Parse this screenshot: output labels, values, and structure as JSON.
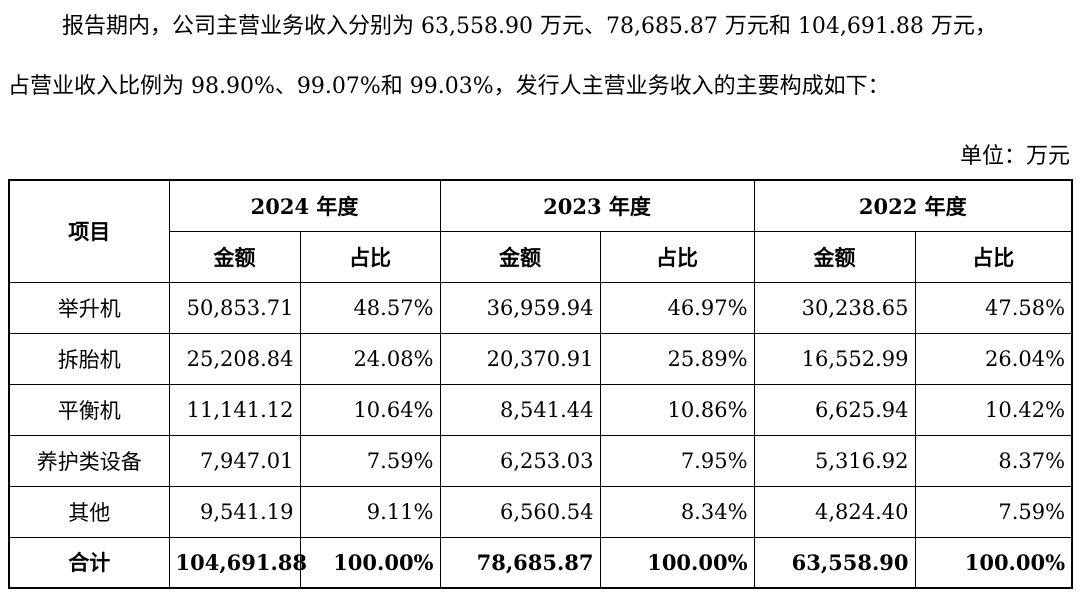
{
  "intro": {
    "line1": "报告期内，公司主营业务收入分别为 63,558.90 万元、78,685.87 万元和 104,691.88 万元，",
    "line2": "占营业收入比例为 98.90%、99.07%和 99.03%，发行人主营业务收入的主要构成如下："
  },
  "unit_label": "单位：万元",
  "table": {
    "item_header": "项目",
    "years": [
      "2024 年度",
      "2023 年度",
      "2022 年度"
    ],
    "sub_headers": {
      "amount": "金额",
      "ratio": "占比"
    },
    "rows": [
      {
        "name": "举升机",
        "cells": [
          "50,853.71",
          "48.57%",
          "36,959.94",
          "46.97%",
          "30,238.65",
          "47.58%"
        ]
      },
      {
        "name": "拆胎机",
        "cells": [
          "25,208.84",
          "24.08%",
          "20,370.91",
          "25.89%",
          "16,552.99",
          "26.04%"
        ]
      },
      {
        "name": "平衡机",
        "cells": [
          "11,141.12",
          "10.64%",
          "8,541.44",
          "10.86%",
          "6,625.94",
          "10.42%"
        ]
      },
      {
        "name": "养护类设备",
        "cells": [
          "7,947.01",
          "7.59%",
          "6,253.03",
          "7.95%",
          "5,316.92",
          "8.37%"
        ]
      },
      {
        "name": "其他",
        "cells": [
          "9,541.19",
          "9.11%",
          "6,560.54",
          "8.34%",
          "4,824.40",
          "7.59%"
        ]
      }
    ],
    "total": {
      "name": "合计",
      "cells": [
        "104,691.88",
        "100.00%",
        "78,685.87",
        "100.00%",
        "63,558.90",
        "100.00%"
      ]
    }
  }
}
